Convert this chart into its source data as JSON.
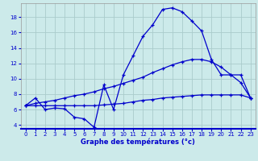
{
  "title": "Graphe des températures (°c)",
  "bg_color": "#cceaea",
  "grid_color": "#aacccc",
  "line_color": "#0000cc",
  "xlim": [
    -0.5,
    23.5
  ],
  "ylim": [
    3.5,
    19.8
  ],
  "xticks": [
    0,
    1,
    2,
    3,
    4,
    5,
    6,
    7,
    8,
    9,
    10,
    11,
    12,
    13,
    14,
    15,
    16,
    17,
    18,
    19,
    20,
    21,
    22,
    23
  ],
  "yticks": [
    4,
    6,
    8,
    10,
    12,
    14,
    16,
    18
  ],
  "series": [
    {
      "x": [
        0,
        1,
        2,
        3,
        4,
        5,
        6,
        7,
        8,
        9,
        10,
        11,
        12,
        13,
        14,
        15,
        16,
        17,
        18,
        19,
        20,
        21,
        22,
        23
      ],
      "y": [
        6.5,
        7.5,
        6.0,
        6.2,
        6.1,
        5.0,
        4.8,
        3.7,
        9.2,
        6.0,
        10.5,
        13.0,
        15.5,
        17.0,
        19.0,
        19.2,
        18.7,
        17.5,
        16.2,
        12.5,
        10.5,
        10.5,
        9.5,
        7.5
      ]
    },
    {
      "x": [
        0,
        1,
        2,
        3,
        4,
        5,
        6,
        7,
        8,
        9,
        10,
        11,
        12,
        13,
        14,
        15,
        16,
        17,
        18,
        19,
        20,
        21,
        22,
        23
      ],
      "y": [
        6.5,
        6.8,
        7.0,
        7.2,
        7.5,
        7.8,
        8.0,
        8.3,
        8.7,
        9.0,
        9.4,
        9.8,
        10.2,
        10.8,
        11.3,
        11.8,
        12.2,
        12.5,
        12.5,
        12.2,
        11.5,
        10.5,
        10.5,
        7.5
      ]
    },
    {
      "x": [
        0,
        1,
        2,
        3,
        4,
        5,
        6,
        7,
        8,
        9,
        10,
        11,
        12,
        13,
        14,
        15,
        16,
        17,
        18,
        19,
        20,
        21,
        22,
        23
      ],
      "y": [
        6.5,
        6.5,
        6.5,
        6.5,
        6.5,
        6.5,
        6.5,
        6.5,
        6.6,
        6.7,
        6.8,
        7.0,
        7.2,
        7.3,
        7.5,
        7.6,
        7.7,
        7.8,
        7.9,
        7.9,
        7.9,
        7.9,
        7.9,
        7.5
      ]
    }
  ]
}
